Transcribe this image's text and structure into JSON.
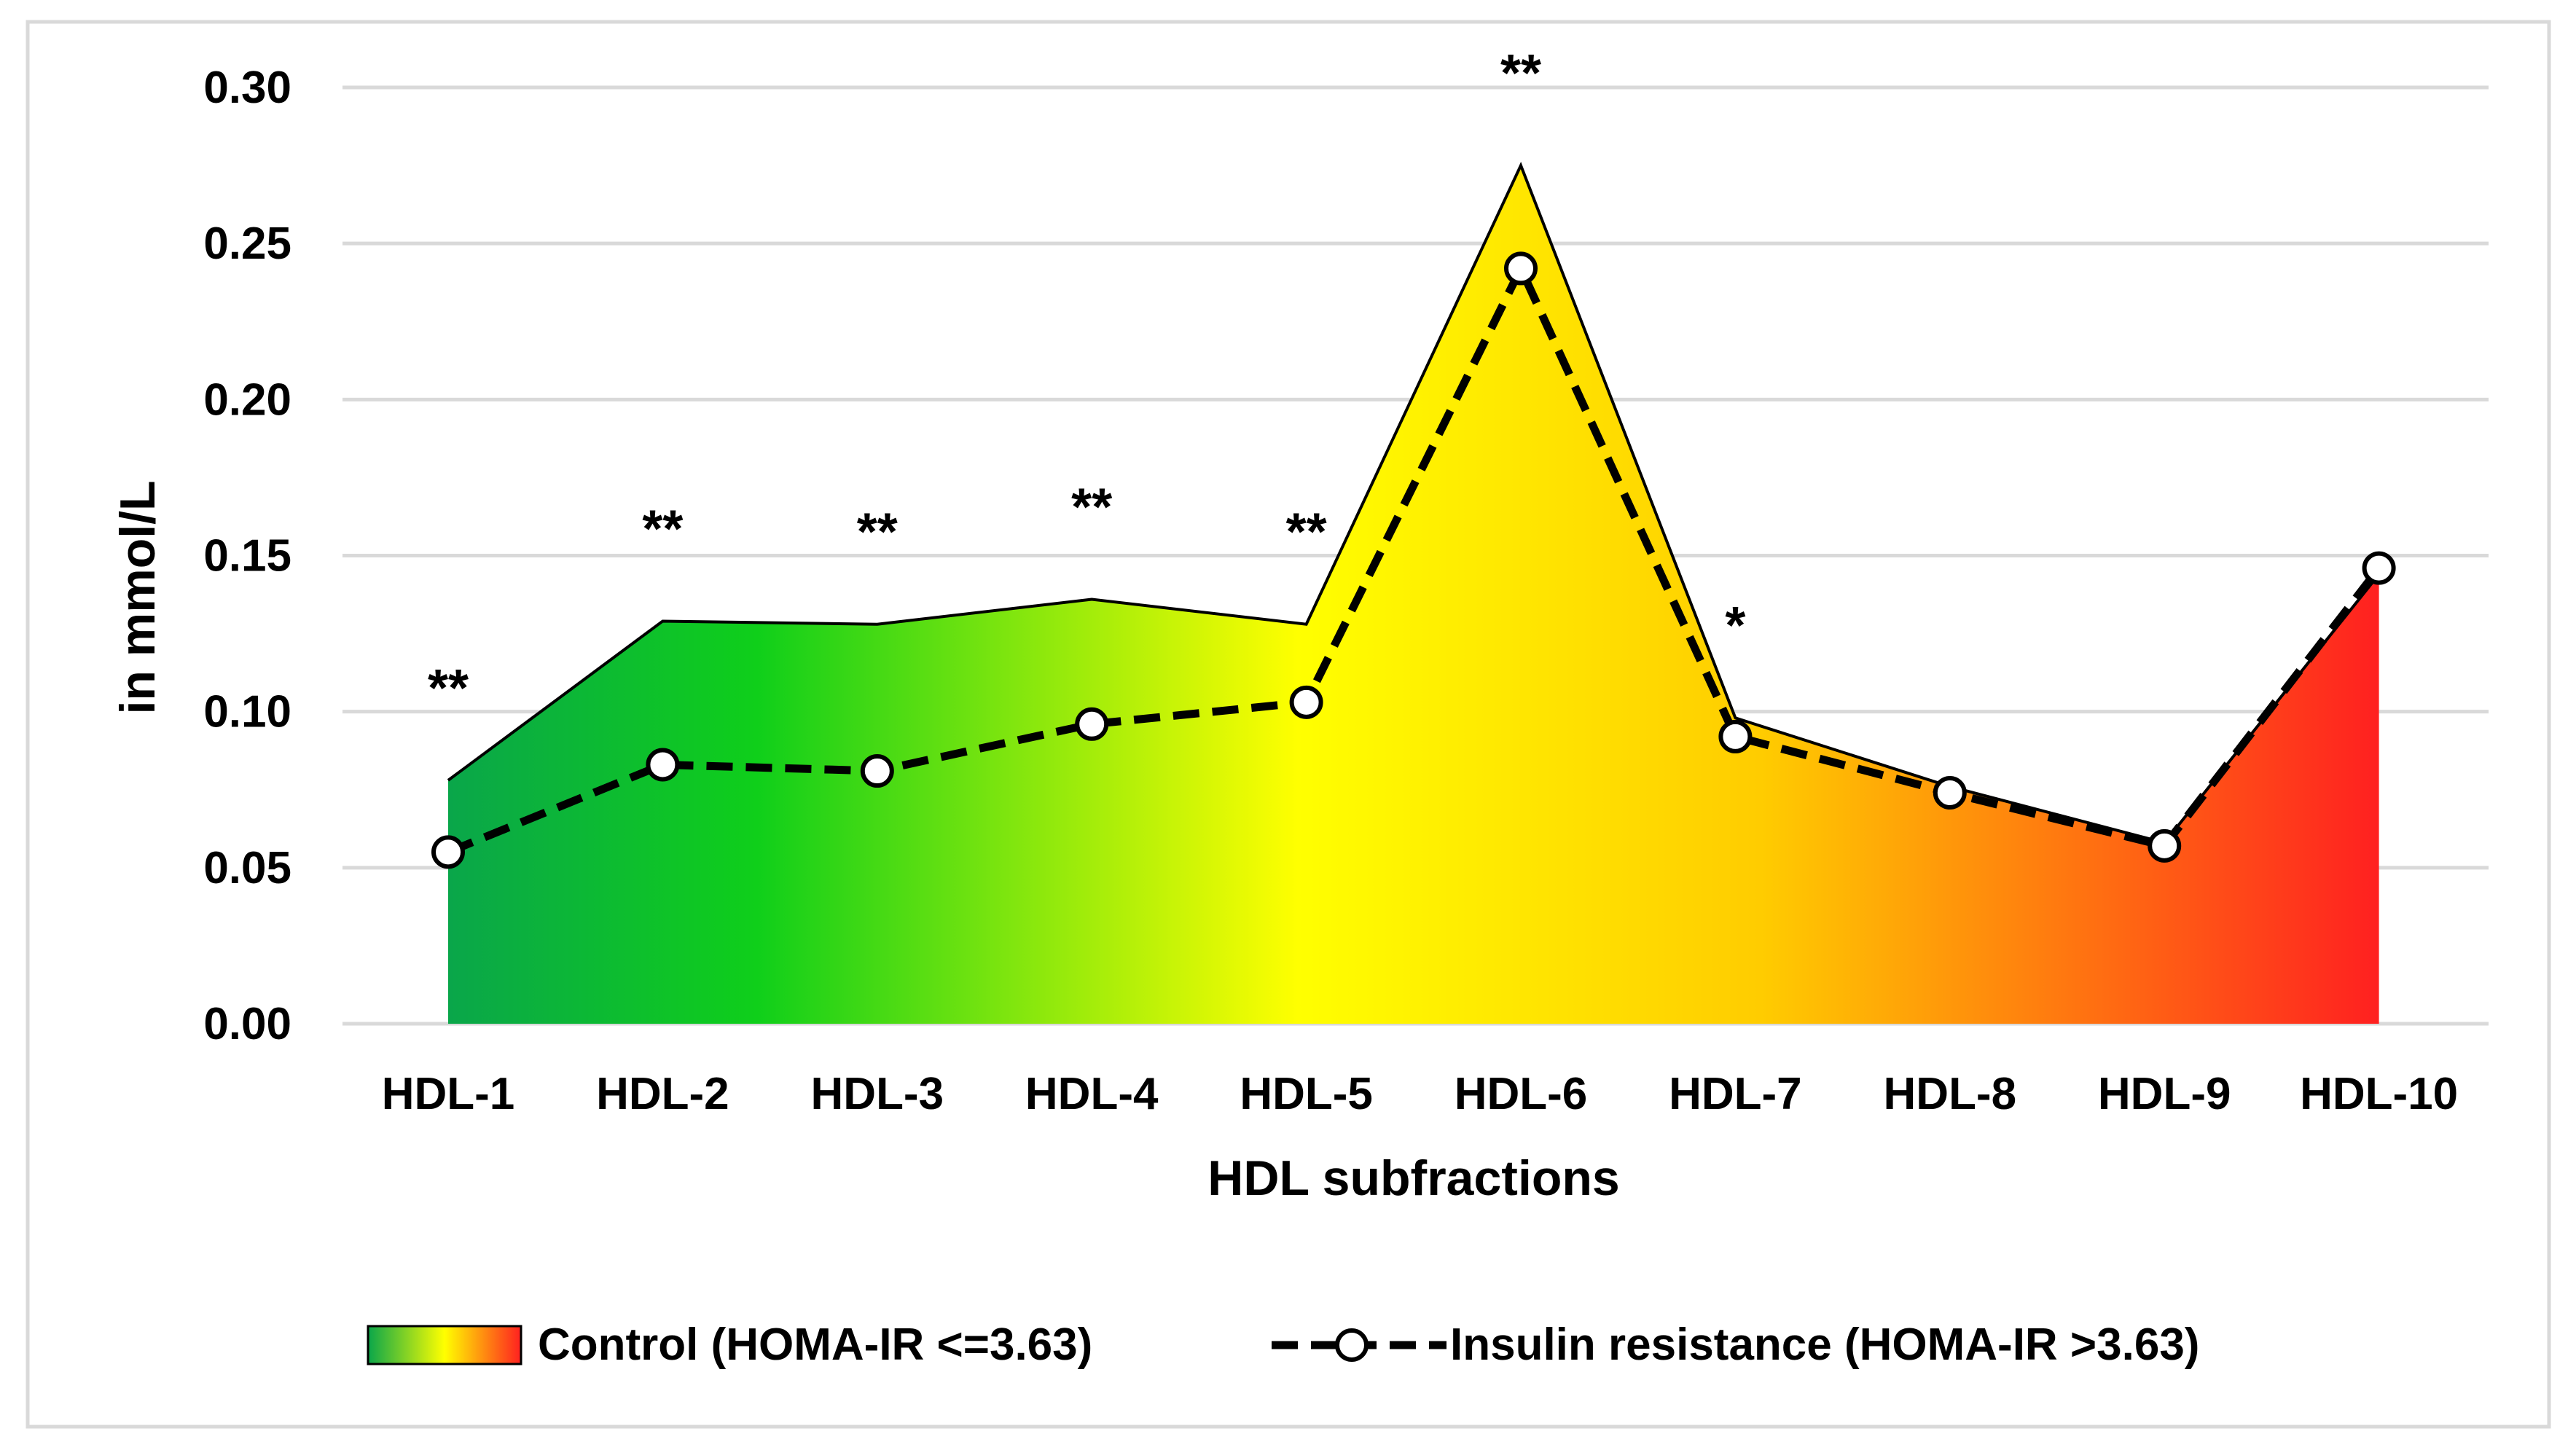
{
  "chart_data": {
    "type": "area",
    "xlabel": "HDL subfractions",
    "ylabel": "in mmol/L",
    "ylim": [
      0,
      0.3
    ],
    "yticks": [
      "0.00",
      "0.05",
      "0.10",
      "0.15",
      "0.20",
      "0.25",
      "0.30"
    ],
    "grid": true,
    "legend_position": "bottom",
    "categories": [
      "HDL-1",
      "HDL-2",
      "HDL-3",
      "HDL-4",
      "HDL-5",
      "HDL-6",
      "HDL-7",
      "HDL-8",
      "HDL-9",
      "HDL-10"
    ],
    "series": [
      {
        "name": "Control (HOMA-IR <=3.63)",
        "style": "gradient-area",
        "values": [
          0.078,
          0.129,
          0.128,
          0.136,
          0.128,
          0.275,
          0.098,
          0.076,
          0.058,
          0.144
        ]
      },
      {
        "name": "Insulin resistance (HOMA-IR >3.63)",
        "style": "dashed-line-open-markers",
        "values": [
          0.055,
          0.083,
          0.081,
          0.096,
          0.103,
          0.242,
          0.092,
          0.074,
          0.057,
          0.146
        ]
      }
    ],
    "annotations": [
      "**",
      "**",
      "**",
      "**",
      "**",
      "**",
      "*",
      "",
      "",
      ""
    ],
    "colors": {
      "gradient": [
        "#0aa64a",
        "#0fcf1a",
        "#ffff00",
        "#ffcc00",
        "#ff2020"
      ],
      "grid": "#d9d9d9",
      "border": "#d9d9d9",
      "line": "#000000",
      "marker_fill": "#ffffff"
    }
  }
}
